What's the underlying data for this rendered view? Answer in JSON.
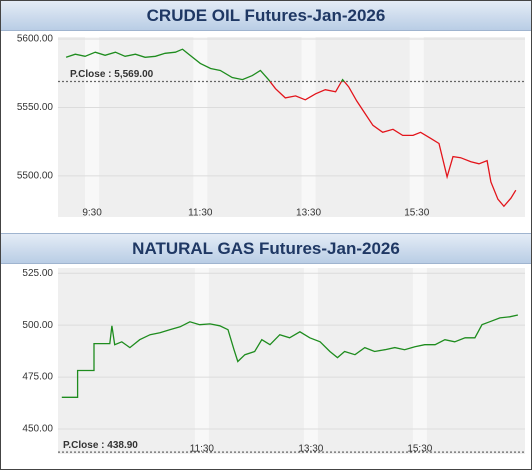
{
  "chart_data": [
    {
      "type": "line",
      "title": "CRUDE OIL Futures-Jan-2026",
      "x": [
        9.02,
        9.19,
        9.37,
        9.56,
        9.74,
        9.93,
        10.11,
        10.3,
        10.48,
        10.67,
        10.85,
        11.04,
        11.17,
        11.31,
        11.5,
        11.69,
        11.87,
        12.09,
        12.28,
        12.46,
        12.61,
        12.76,
        12.89,
        13.07,
        13.26,
        13.44,
        13.63,
        13.81,
        14.0,
        14.13,
        14.24,
        14.39,
        14.54,
        14.69,
        14.87,
        15.06,
        15.24,
        15.43,
        15.57,
        15.76,
        15.91,
        16.06,
        16.17,
        16.31,
        16.5,
        16.65,
        16.8,
        16.87,
        17.0,
        17.11,
        17.24,
        17.33
      ],
      "series": [
        {
          "up_color": "#1e8c1e",
          "down_color": "#e3141b",
          "values": [
            5586.7,
            5588.9,
            5587.4,
            5590.4,
            5588.1,
            5590.4,
            5587.4,
            5588.9,
            5586.7,
            5587.4,
            5589.6,
            5590.4,
            5592.6,
            5588.1,
            5582.2,
            5578.5,
            5577.0,
            5571.9,
            5570.4,
            5573.3,
            5577.0,
            5570.4,
            5563.7,
            5557.0,
            5558.5,
            5555.6,
            5560.0,
            5563.0,
            5561.5,
            5570.4,
            5565.2,
            5554.8,
            5545.9,
            5537.0,
            5531.9,
            5534.1,
            5529.6,
            5529.6,
            5531.9,
            5527.4,
            5523.7,
            5499.3,
            5514.1,
            5513.3,
            5510.4,
            5508.9,
            5511.1,
            5495.6,
            5483.0,
            5477.8,
            5483.7,
            5489.6
          ]
        }
      ],
      "reference_line": {
        "value": 5569,
        "label": "P.Close : 5,569.00"
      },
      "xlim": [
        8.87,
        17.5
      ],
      "ylim": [
        5470,
        5601.5
      ],
      "xticks": [
        {
          "value": 9.5,
          "label": "9:30"
        },
        {
          "value": 11.5,
          "label": "11:30"
        },
        {
          "value": 13.5,
          "label": "13:30"
        },
        {
          "value": 15.5,
          "label": "15:30"
        }
      ],
      "yticks": [
        {
          "value": 5500,
          "label": "5500.00"
        },
        {
          "value": 5550,
          "label": "5550.00"
        },
        {
          "value": 5600,
          "label": "5600.00"
        }
      ],
      "grid": true
    },
    {
      "type": "line",
      "title": "NATURAL GAS Futures-Jan-2026",
      "x": [
        8.93,
        9.22,
        9.22,
        9.52,
        9.52,
        9.81,
        9.85,
        9.9,
        10.03,
        10.18,
        10.36,
        10.55,
        10.73,
        10.91,
        11.1,
        11.28,
        11.46,
        11.65,
        11.83,
        11.98,
        12.09,
        12.16,
        12.29,
        12.47,
        12.6,
        12.75,
        12.93,
        13.11,
        13.3,
        13.48,
        13.67,
        13.85,
        13.99,
        14.12,
        14.31,
        14.49,
        14.67,
        14.86,
        15.04,
        15.22,
        15.41,
        15.59,
        15.78,
        15.96,
        16.14,
        16.33,
        16.51,
        16.64,
        16.78,
        16.97,
        17.15,
        17.3
      ],
      "series": [
        {
          "up_color": "#1e8c1e",
          "down_color": "#e3141b",
          "values": [
            465.3,
            465.3,
            478.2,
            478.2,
            491.1,
            491.1,
            499.7,
            490.6,
            492.0,
            489.2,
            493.0,
            495.4,
            496.3,
            497.8,
            499.2,
            501.6,
            500.2,
            500.6,
            499.7,
            497.8,
            488.2,
            482.5,
            485.8,
            487.3,
            493.0,
            490.6,
            495.4,
            493.9,
            496.8,
            493.9,
            492.0,
            487.3,
            484.4,
            487.3,
            485.8,
            489.2,
            487.3,
            488.2,
            489.2,
            488.2,
            489.6,
            490.6,
            490.6,
            493.0,
            492.0,
            493.9,
            493.9,
            500.2,
            501.6,
            503.5,
            504.0,
            504.9
          ]
        }
      ],
      "reference_line": {
        "value": 438.9,
        "label": "P.Close : 438.90"
      },
      "xlim": [
        8.86,
        17.43
      ],
      "ylim": [
        438,
        527.5
      ],
      "xticks": [
        {
          "value": 11.5,
          "label": "11:30"
        },
        {
          "value": 13.5,
          "label": "13:30"
        },
        {
          "value": 15.5,
          "label": "15:30"
        }
      ],
      "yticks": [
        {
          "value": 450,
          "label": "450.00"
        },
        {
          "value": 475,
          "label": "475.00"
        },
        {
          "value": 500,
          "label": "500.00"
        },
        {
          "value": 525,
          "label": "525.00"
        }
      ],
      "grid": true
    }
  ]
}
